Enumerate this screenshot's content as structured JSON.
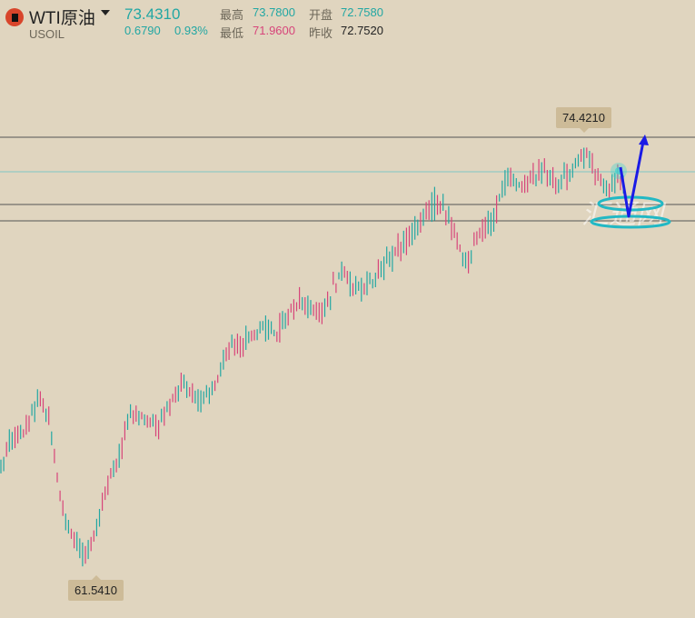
{
  "header": {
    "symbol": "WTI原油",
    "code": "USOIL",
    "price": "73.4310",
    "change": "0.6790",
    "change_pct": "0.93%",
    "high_label": "最高",
    "high": "73.7800",
    "open_label": "开盘",
    "open": "72.7580",
    "low_label": "最低",
    "low": "71.9600",
    "prev_close_label": "昨收",
    "prev_close": "72.7520"
  },
  "chart": {
    "max_label": "74.4210",
    "min_label": "61.5410",
    "watermark": "汇通网"
  },
  "colors": {
    "up": "#22a7a3",
    "down": "#d7457a",
    "arrow": "#1a1ae6",
    "background": "#e0d5bf"
  }
}
